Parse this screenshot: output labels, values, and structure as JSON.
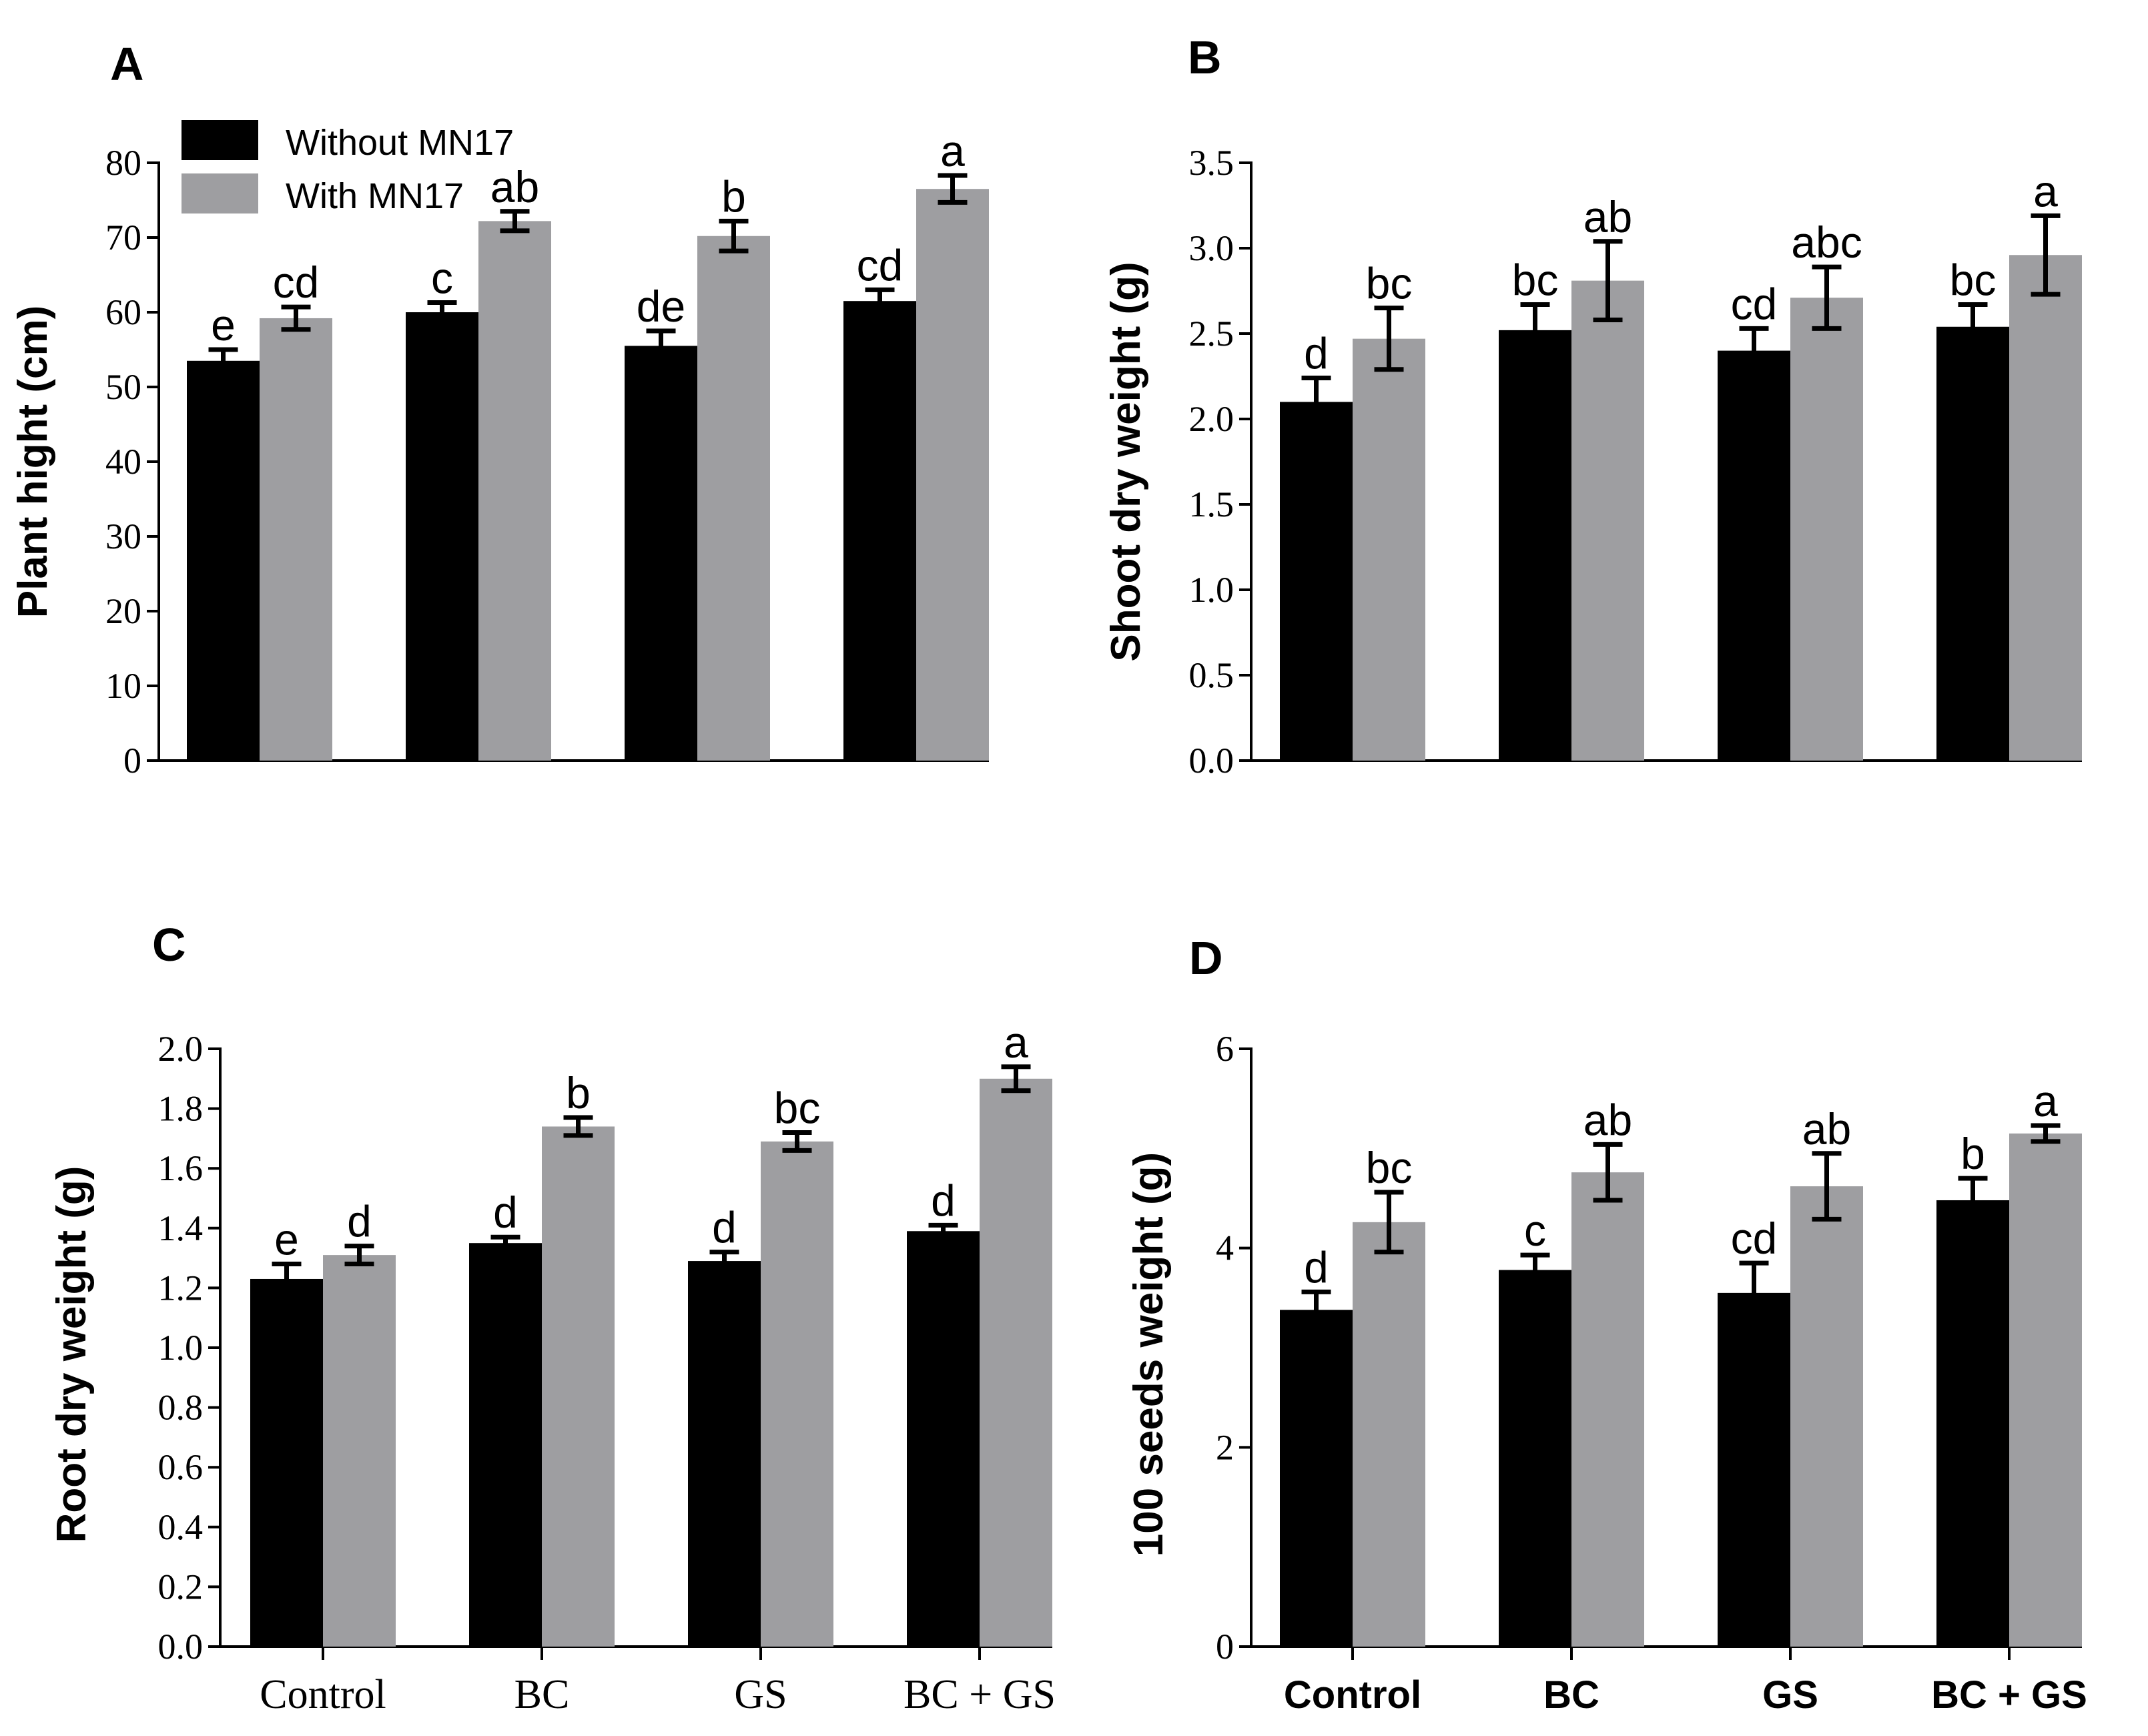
{
  "legend": {
    "series1": "Without MN17",
    "series2": "With MN17",
    "color1": "#000000",
    "color2": "#9e9ea1"
  },
  "chart_data": [
    {
      "type": "bar",
      "panel": "A",
      "ylabel": "Plant hight (cm)",
      "ylim": [
        0,
        80
      ],
      "yticks": [
        0,
        10,
        20,
        30,
        40,
        50,
        60,
        70,
        80
      ],
      "ytick_labels": [
        "0",
        "10",
        "20",
        "30",
        "40",
        "50",
        "60",
        "70",
        "80"
      ],
      "categories": [
        "Control",
        "BC",
        "GS",
        "BC + GS"
      ],
      "show_xticklabels": false,
      "series": [
        {
          "name": "Without MN17",
          "values": [
            53.5,
            60.0,
            55.5,
            61.5
          ],
          "errors": [
            1.5,
            1.3,
            2.0,
            1.5
          ],
          "letters": [
            "e",
            "c",
            "de",
            "cd"
          ]
        },
        {
          "name": "With MN17",
          "values": [
            59.2,
            72.2,
            70.2,
            76.5
          ],
          "errors": [
            1.5,
            1.3,
            2.0,
            1.8
          ],
          "letters": [
            "cd",
            "ab",
            "b",
            "a"
          ]
        }
      ]
    },
    {
      "type": "bar",
      "panel": "B",
      "ylabel": "Shoot dry weight (g)",
      "ylim": [
        0,
        3.5
      ],
      "yticks": [
        0,
        0.5,
        1.0,
        1.5,
        2.0,
        2.5,
        3.0,
        3.5
      ],
      "ytick_labels": [
        "0.0",
        "0.5",
        "1.0",
        "1.5",
        "2.0",
        "2.5",
        "3.0",
        "3.5"
      ],
      "categories": [
        "Control",
        "BC",
        "GS",
        "BC + GS"
      ],
      "show_xticklabels": false,
      "series": [
        {
          "name": "Without MN17",
          "values": [
            2.1,
            2.52,
            2.4,
            2.54
          ],
          "errors": [
            0.14,
            0.15,
            0.13,
            0.13
          ],
          "letters": [
            "d",
            "bc",
            "cd",
            "bc"
          ]
        },
        {
          "name": "With MN17",
          "values": [
            2.47,
            2.81,
            2.71,
            2.96
          ],
          "errors": [
            0.18,
            0.23,
            0.18,
            0.23
          ],
          "letters": [
            "bc",
            "ab",
            "abc",
            "a"
          ]
        }
      ]
    },
    {
      "type": "bar",
      "panel": "C",
      "ylabel": "Root dry weight (g)",
      "ylim": [
        0,
        2.0
      ],
      "yticks": [
        0,
        0.2,
        0.4,
        0.6,
        0.8,
        1.0,
        1.2,
        1.4,
        1.6,
        1.8,
        2.0
      ],
      "ytick_labels": [
        "0.0",
        "0.2",
        "0.4",
        "0.6",
        "0.8",
        "1.0",
        "1.2",
        "1.4",
        "1.6",
        "1.8",
        "2.0"
      ],
      "categories": [
        "Control",
        "BC",
        "GS",
        "BC + GS"
      ],
      "show_xticklabels": true,
      "xtick_style": "serif",
      "series": [
        {
          "name": "Without MN17",
          "values": [
            1.23,
            1.35,
            1.29,
            1.39
          ],
          "errors": [
            0.05,
            0.02,
            0.03,
            0.02
          ],
          "letters": [
            "e",
            "d",
            "d",
            "d"
          ]
        },
        {
          "name": "With MN17",
          "values": [
            1.31,
            1.74,
            1.69,
            1.9
          ],
          "errors": [
            0.03,
            0.03,
            0.03,
            0.04
          ],
          "letters": [
            "d",
            "b",
            "bc",
            "a"
          ]
        }
      ]
    },
    {
      "type": "bar",
      "panel": "D",
      "ylabel": "100 seeds weight (g)",
      "ylim": [
        0,
        6
      ],
      "yticks": [
        0,
        2,
        4,
        6
      ],
      "ytick_labels": [
        "0",
        "2",
        "4",
        "6"
      ],
      "categories": [
        "Control",
        "BC",
        "GS",
        "BC + GS"
      ],
      "show_xticklabels": true,
      "xtick_style": "bold",
      "series": [
        {
          "name": "Without MN17",
          "values": [
            3.38,
            3.78,
            3.55,
            4.48
          ],
          "errors": [
            0.18,
            0.15,
            0.3,
            0.22
          ],
          "letters": [
            "d",
            "c",
            "cd",
            "b"
          ]
        },
        {
          "name": "With MN17",
          "values": [
            4.26,
            4.76,
            4.62,
            5.15
          ],
          "errors": [
            0.3,
            0.28,
            0.33,
            0.08
          ],
          "letters": [
            "bc",
            "ab",
            "ab",
            "a"
          ]
        }
      ]
    }
  ]
}
